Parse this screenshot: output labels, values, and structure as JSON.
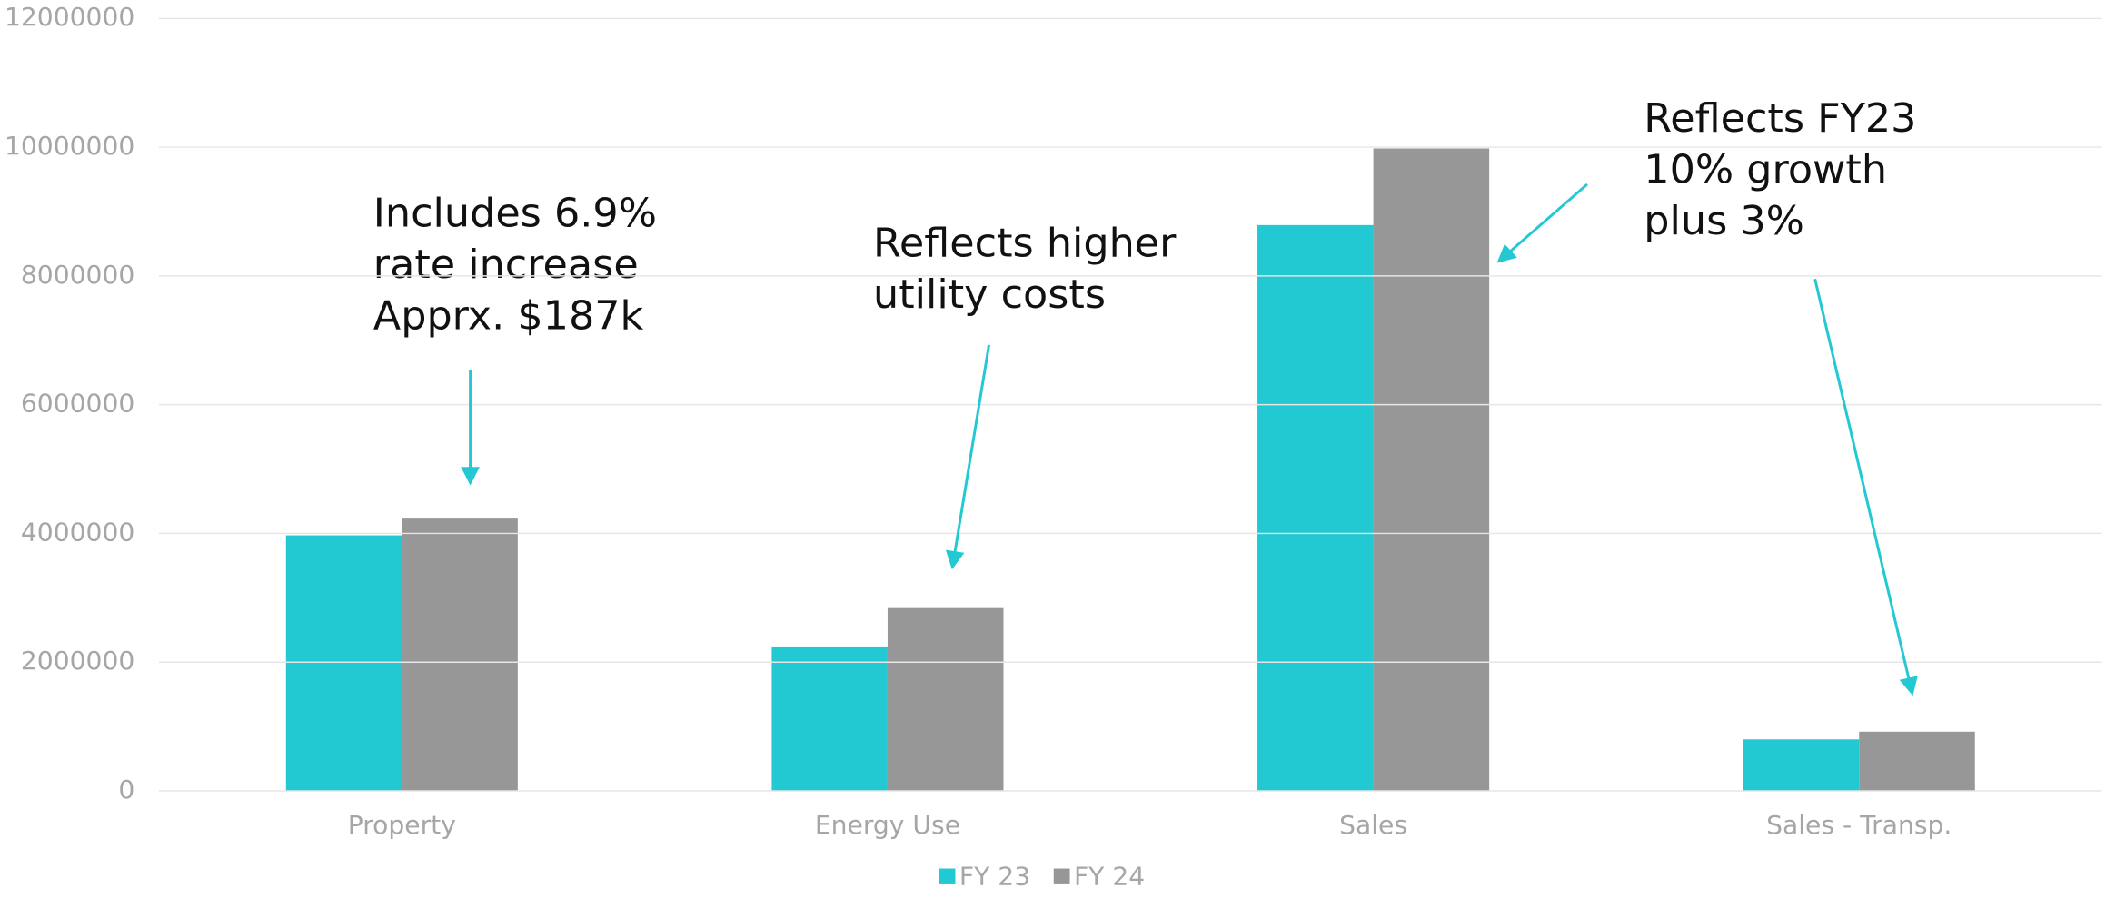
{
  "chart_data": {
    "type": "bar",
    "categories": [
      "Property",
      "Energy Use",
      "Sales",
      "Sales - Transp."
    ],
    "series": [
      {
        "name": "FY 23",
        "color": "#22c8d2",
        "values": [
          3970000,
          2230000,
          8790000,
          800000
        ]
      },
      {
        "name": "FY 24",
        "color": "#979797",
        "values": [
          4230000,
          2840000,
          9980000,
          920000
        ]
      }
    ],
    "ylim": [
      0,
      12000000
    ],
    "yticks": [
      0,
      2000000,
      4000000,
      6000000,
      8000000,
      10000000,
      12000000
    ],
    "grid": true,
    "legend": "bottom",
    "annotations": [
      [
        "Includes 6.9%",
        "rate increase",
        "Apprx. $187k"
      ],
      [
        "Reflects higher",
        "utility costs"
      ],
      [
        "Reflects FY23",
        "10% growth",
        "plus 3%"
      ]
    ]
  }
}
